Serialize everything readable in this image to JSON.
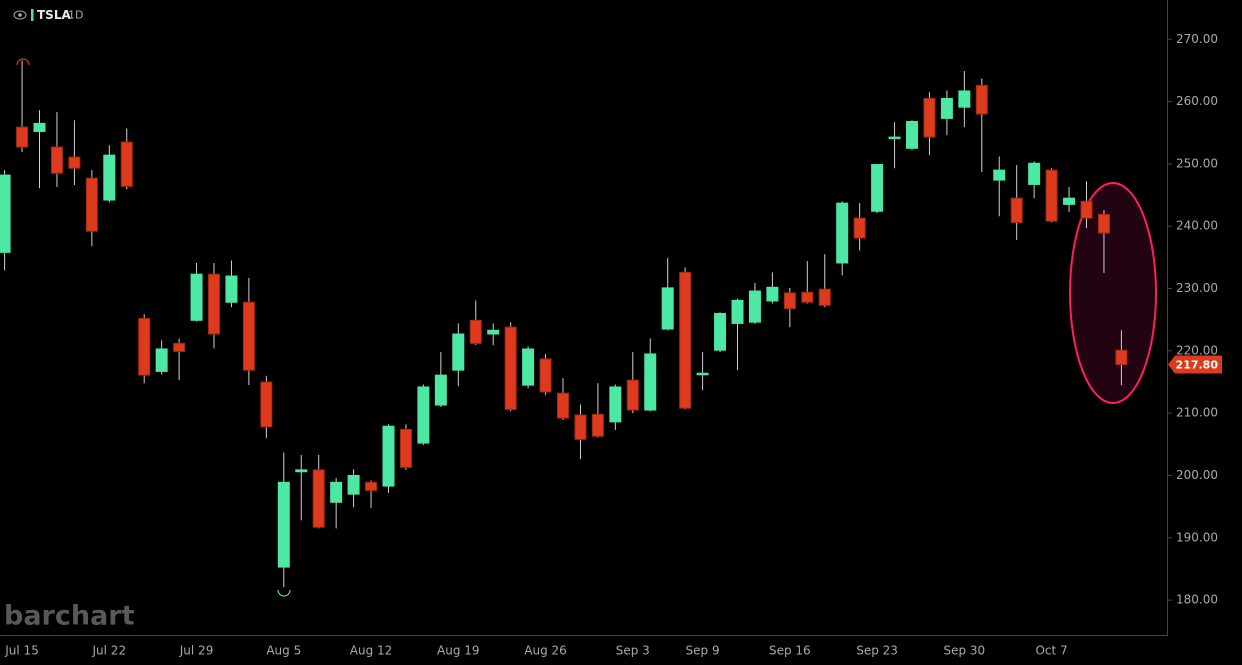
{
  "chart_data": {
    "type": "candlestick",
    "symbol": "TSLA",
    "interval": "1D",
    "watermark": "barchart",
    "categories": [
      null,
      "Jul 15",
      null,
      null,
      null,
      null,
      "Jul 22",
      null,
      null,
      null,
      null,
      "Jul 29",
      null,
      null,
      null,
      null,
      "Aug 5",
      null,
      null,
      null,
      null,
      "Aug 12",
      null,
      null,
      null,
      null,
      "Aug 19",
      null,
      null,
      null,
      null,
      "Aug 26",
      null,
      null,
      null,
      null,
      "Sep 3",
      null,
      null,
      null,
      "Sep 9",
      null,
      null,
      null,
      null,
      "Sep 16",
      null,
      null,
      null,
      null,
      "Sep 23",
      null,
      null,
      null,
      null,
      "Sep 30",
      null,
      null,
      null,
      null,
      "Oct 7",
      null,
      null,
      null,
      null
    ],
    "open": [
      235.8,
      255.9,
      255.2,
      252.7,
      251.1,
      247.7,
      244.2,
      253.5,
      225.2,
      216.7,
      221.2,
      224.9,
      232.3,
      227.8,
      227.8,
      215.0,
      185.3,
      200.6,
      200.9,
      195.7,
      197.0,
      198.9,
      198.3,
      207.4,
      205.2,
      211.3,
      216.9,
      224.9,
      222.7,
      223.8,
      214.5,
      218.7,
      213.2,
      209.7,
      209.8,
      208.6,
      215.3,
      210.5,
      223.5,
      232.6,
      216.2,
      220.1,
      224.4,
      224.6,
      228.0,
      229.3,
      229.4,
      229.9,
      234.1,
      241.3,
      242.4,
      254.1,
      252.5,
      260.5,
      257.3,
      259.1,
      262.6,
      247.4,
      244.5,
      246.7,
      249.0,
      243.5,
      244.0,
      241.9,
      220.1
    ],
    "high": [
      249.0,
      266.6,
      258.6,
      258.3,
      257.0,
      249.0,
      253.0,
      255.7,
      225.9,
      221.7,
      222.0,
      234.1,
      234.1,
      234.5,
      231.7,
      216.0,
      203.7,
      203.3,
      203.3,
      199.6,
      201.0,
      199.2,
      208.2,
      208.2,
      214.6,
      219.8,
      224.4,
      228.1,
      224.4,
      224.6,
      220.7,
      219.5,
      215.6,
      211.4,
      214.8,
      214.6,
      219.8,
      222.0,
      234.9,
      233.4,
      219.8,
      226.2,
      228.4,
      230.9,
      232.6,
      230.1,
      234.4,
      235.5,
      244.0,
      243.7,
      250.0,
      256.7,
      257.0,
      261.5,
      261.8,
      264.9,
      263.7,
      251.2,
      249.8,
      250.4,
      249.3,
      246.3,
      247.2,
      242.6,
      223.3
    ],
    "low": [
      232.9,
      251.9,
      246.1,
      246.3,
      246.6,
      236.8,
      243.8,
      245.9,
      214.8,
      216.2,
      215.3,
      224.7,
      220.4,
      227.0,
      214.5,
      206.0,
      182.1,
      192.8,
      191.5,
      191.5,
      194.9,
      194.8,
      197.2,
      200.9,
      204.9,
      211.0,
      214.3,
      220.9,
      220.9,
      210.3,
      214.0,
      212.9,
      208.9,
      202.6,
      206.1,
      207.3,
      210.0,
      210.3,
      223.3,
      210.6,
      213.7,
      219.8,
      216.9,
      224.3,
      227.6,
      223.8,
      227.6,
      227.0,
      232.1,
      236.1,
      242.1,
      249.3,
      252.2,
      251.4,
      254.6,
      255.9,
      248.7,
      241.6,
      237.8,
      244.5,
      240.6,
      242.3,
      239.7,
      232.5,
      214.5
    ],
    "close": [
      248.2,
      252.7,
      256.5,
      248.5,
      249.3,
      239.2,
      251.4,
      246.4,
      216.1,
      220.3,
      219.9,
      232.3,
      222.7,
      232.0,
      216.9,
      207.8,
      198.9,
      200.9,
      191.7,
      198.9,
      200.0,
      197.6,
      207.9,
      201.3,
      214.2,
      216.1,
      222.7,
      221.2,
      223.3,
      210.6,
      220.3,
      213.4,
      209.2,
      205.8,
      206.3,
      214.2,
      210.5,
      219.5,
      230.1,
      210.8,
      216.4,
      226.0,
      228.1,
      229.6,
      230.2,
      226.8,
      227.8,
      227.3,
      243.7,
      238.1,
      249.9,
      254.3,
      256.8,
      254.3,
      260.5,
      261.7,
      258.0,
      249.0,
      240.6,
      250.1,
      240.8,
      244.5,
      241.3,
      238.9,
      217.8
    ],
    "up_color": "#4de8a3",
    "down_color": "#dd3a1e",
    "last_price": {
      "value": 217.8,
      "label": "217.80"
    },
    "ylim": [
      174.4,
      276.3
    ],
    "yticks": [
      {
        "value": 180,
        "label": "180.00"
      },
      {
        "value": 190,
        "label": "190.00"
      },
      {
        "value": 200,
        "label": "200.00"
      },
      {
        "value": 210,
        "label": "210.00"
      },
      {
        "value": 220,
        "label": "220.00"
      },
      {
        "value": 230,
        "label": "230.00"
      },
      {
        "value": 240,
        "label": "240.00"
      },
      {
        "value": 250,
        "label": "250.00"
      },
      {
        "value": 260,
        "label": "260.00"
      },
      {
        "value": 270,
        "label": "270.00"
      }
    ]
  }
}
